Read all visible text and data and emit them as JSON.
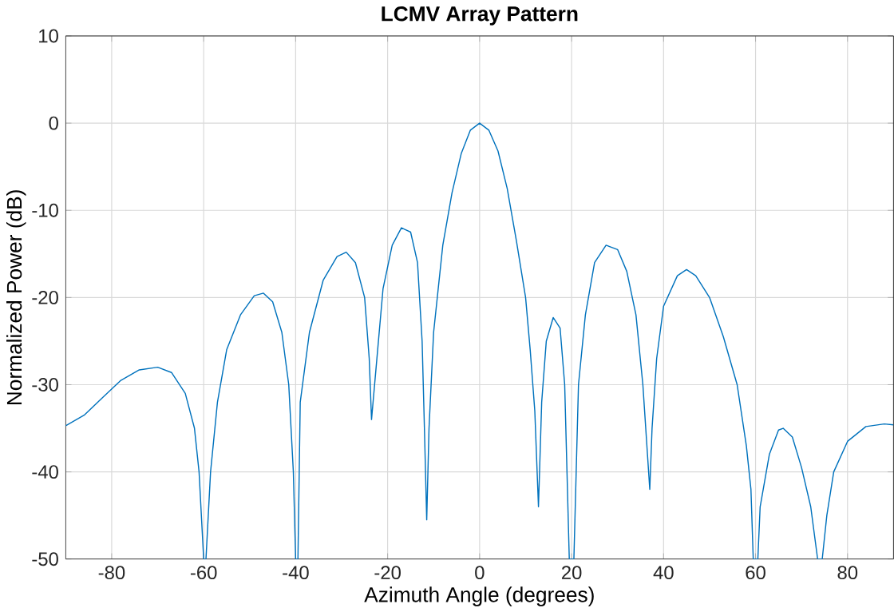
{
  "chart_data": {
    "type": "line",
    "title": "LCMV Array Pattern",
    "xlabel": "Azimuth Angle (degrees)",
    "ylabel": "Normalized Power (dB)",
    "xlim": [
      -90,
      90
    ],
    "ylim": [
      -50,
      10
    ],
    "xticks": [
      -80,
      -60,
      -40,
      -20,
      0,
      20,
      40,
      60,
      80
    ],
    "yticks": [
      -50,
      -40,
      -30,
      -20,
      -10,
      0,
      10
    ],
    "grid": true,
    "series": [
      {
        "color": "#0072bd",
        "x": [
          -90,
          -86,
          -82,
          -78,
          -74,
          -70,
          -67,
          -64,
          -62,
          -61,
          -60,
          -59.5,
          -58.5,
          -57,
          -55,
          -52,
          -49,
          -47,
          -45,
          -43,
          -41.5,
          -40.5,
          -40,
          -39.5,
          -39,
          -37,
          -34,
          -31,
          -29,
          -27,
          -25,
          -24,
          -23.5,
          -22.5,
          -21,
          -19,
          -17,
          -15,
          -13.5,
          -12.5,
          -12,
          -11.5,
          -11,
          -10,
          -8,
          -6,
          -4,
          -2,
          0,
          2,
          4,
          6,
          8,
          10,
          11,
          12,
          12.8,
          13.5,
          14.5,
          16,
          17.5,
          18.5,
          19,
          19.5,
          20.5,
          21,
          21.5,
          23,
          25,
          27.5,
          30,
          32,
          34,
          35.5,
          36.5,
          37,
          37.5,
          38.5,
          40,
          43,
          45,
          47,
          50,
          53,
          56,
          58,
          59,
          59.5,
          60.5,
          61,
          63,
          65,
          66,
          68,
          70,
          72,
          73.5,
          74.5,
          75.5,
          77,
          80,
          84,
          88,
          90
        ],
        "values": [
          -34.7,
          -33.5,
          -31.5,
          -29.5,
          -28.3,
          -28,
          -28.6,
          -31,
          -35,
          -40,
          -50,
          -50,
          -40,
          -32,
          -26,
          -22,
          -19.8,
          -19.5,
          -20.5,
          -24,
          -30,
          -40,
          -50,
          -50,
          -32,
          -24,
          -18,
          -15.3,
          -14.8,
          -16,
          -20,
          -27,
          -34,
          -28,
          -19,
          -14,
          -12,
          -12.5,
          -16,
          -25,
          -35,
          -45.5,
          -35,
          -24,
          -14,
          -8,
          -3.5,
          -0.8,
          0,
          -0.8,
          -3.2,
          -7.5,
          -13.5,
          -20,
          -26,
          -33,
          -44,
          -32,
          -25,
          -22.3,
          -23.5,
          -30,
          -40,
          -50,
          -50,
          -40,
          -30,
          -22,
          -16,
          -14,
          -14.5,
          -17,
          -22,
          -30,
          -38,
          -42,
          -35,
          -27,
          -21,
          -17.5,
          -16.8,
          -17.5,
          -20,
          -24.5,
          -30,
          -37,
          -42,
          -50,
          -50,
          -44,
          -38,
          -35.2,
          -35,
          -36,
          -39.5,
          -44,
          -50,
          -50,
          -45,
          -40,
          -36.5,
          -34.8,
          -34.5,
          -34.6
        ]
      }
    ]
  }
}
